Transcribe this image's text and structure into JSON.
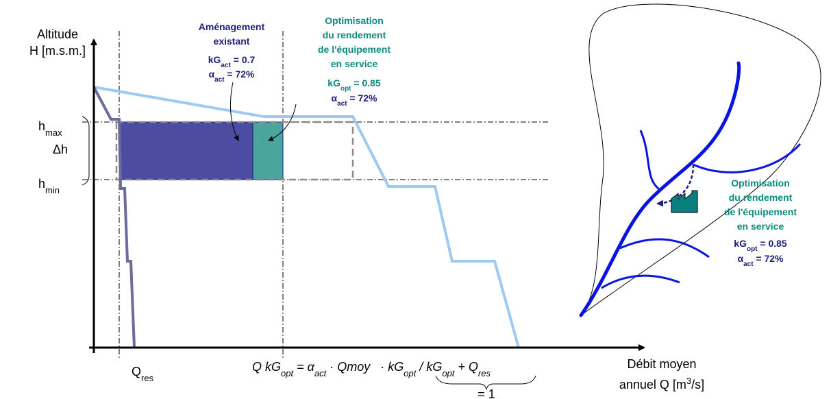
{
  "y_axis_label": [
    "Altitude",
    "H [m.s.m.]"
  ],
  "x_axis_label": {
    "line1": "Débit moyen",
    "line2": [
      {
        "text": "annuel Q [m"
      },
      {
        "sup": "3"
      },
      {
        "text": "/s]"
      }
    ]
  },
  "h_max": [
    {
      "text": "h"
    },
    {
      "sub": "max"
    }
  ],
  "delta_h": "Δh",
  "h_min": [
    {
      "text": "h"
    },
    {
      "sub": "min"
    }
  ],
  "q_res": [
    {
      "text": "Q"
    },
    {
      "sub": "res"
    }
  ],
  "existing": {
    "title": [
      "Aménagement",
      "existant"
    ],
    "kg": [
      {
        "text": "kG"
      },
      {
        "sub": "act"
      },
      {
        "text": " = 0.7"
      }
    ],
    "alpha": [
      {
        "text": "α"
      },
      {
        "sub": "act"
      },
      {
        "text": " = 72%"
      }
    ]
  },
  "optimised": {
    "title": [
      "Optimisation",
      "du rendement",
      "de l'équipement",
      "en service"
    ],
    "kg": [
      {
        "text": "kG"
      },
      {
        "sub": "opt"
      },
      {
        "text": " = 0.85"
      }
    ],
    "alpha": [
      {
        "text": "α"
      },
      {
        "sub": "act"
      },
      {
        "text": " = 72%"
      }
    ]
  },
  "formula": [
    {
      "text": "Q kG"
    },
    {
      "sub": "opt"
    },
    {
      "text": " = α"
    },
    {
      "sub": "act"
    },
    {
      "text": " · Qmoy   · "
    },
    {
      "text": "kG"
    },
    {
      "sub": "opt"
    },
    {
      "text": " / kG"
    },
    {
      "sub": "opt"
    },
    {
      "text": " + Q"
    },
    {
      "sub": "res"
    }
  ],
  "formula_note": "= 1",
  "map_label": {
    "title": [
      "Optimisation",
      "du rendement",
      "de l'équipement",
      "en service"
    ],
    "kg": [
      {
        "text": "kG"
      },
      {
        "sub": "opt"
      },
      {
        "text": " = 0.85"
      }
    ],
    "alpha": [
      {
        "text": "α"
      },
      {
        "sub": "act"
      },
      {
        "text": " = 72%"
      }
    ]
  }
}
